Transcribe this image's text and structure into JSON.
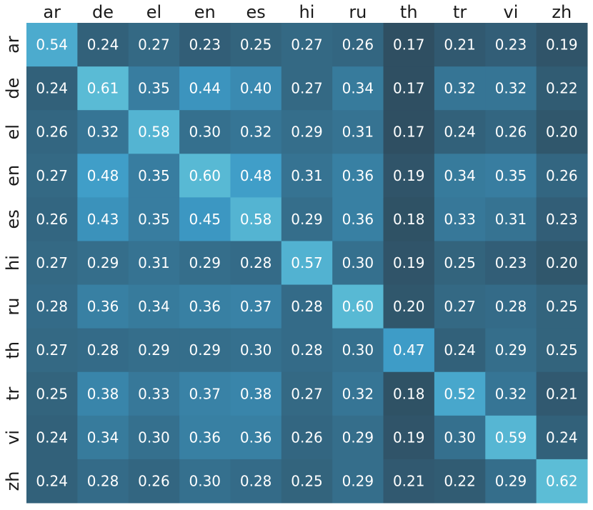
{
  "chart_data": {
    "type": "heatmap",
    "title": "",
    "xlabel": "",
    "ylabel": "",
    "x_categories": [
      "ar",
      "de",
      "el",
      "en",
      "es",
      "hi",
      "ru",
      "th",
      "tr",
      "vi",
      "zh"
    ],
    "y_categories": [
      "ar",
      "de",
      "el",
      "en",
      "es",
      "hi",
      "ru",
      "th",
      "tr",
      "vi",
      "zh"
    ],
    "x_axis_position": "top",
    "colorbar": false,
    "color_low": "#2f4f62",
    "color_mid": "#3d9ac6",
    "color_high": "#5cbdd6",
    "value_range": [
      0.17,
      0.62
    ],
    "values": [
      [
        "0.54",
        "0.24",
        "0.27",
        "0.23",
        "0.25",
        "0.27",
        "0.26",
        "0.17",
        "0.21",
        "0.23",
        "0.19"
      ],
      [
        "0.24",
        "0.61",
        "0.35",
        "0.44",
        "0.40",
        "0.27",
        "0.34",
        "0.17",
        "0.32",
        "0.32",
        "0.22"
      ],
      [
        "0.26",
        "0.32",
        "0.58",
        "0.30",
        "0.32",
        "0.29",
        "0.31",
        "0.17",
        "0.24",
        "0.26",
        "0.20"
      ],
      [
        "0.27",
        "0.48",
        "0.35",
        "0.60",
        "0.48",
        "0.31",
        "0.36",
        "0.19",
        "0.34",
        "0.35",
        "0.26"
      ],
      [
        "0.26",
        "0.43",
        "0.35",
        "0.45",
        "0.58",
        "0.29",
        "0.36",
        "0.18",
        "0.33",
        "0.31",
        "0.23"
      ],
      [
        "0.27",
        "0.29",
        "0.31",
        "0.29",
        "0.28",
        "0.57",
        "0.30",
        "0.19",
        "0.25",
        "0.23",
        "0.20"
      ],
      [
        "0.28",
        "0.36",
        "0.34",
        "0.36",
        "0.37",
        "0.28",
        "0.60",
        "0.20",
        "0.27",
        "0.28",
        "0.25"
      ],
      [
        "0.27",
        "0.28",
        "0.29",
        "0.29",
        "0.30",
        "0.28",
        "0.30",
        "0.47",
        "0.24",
        "0.29",
        "0.25"
      ],
      [
        "0.25",
        "0.38",
        "0.33",
        "0.37",
        "0.38",
        "0.27",
        "0.32",
        "0.18",
        "0.52",
        "0.32",
        "0.21"
      ],
      [
        "0.24",
        "0.34",
        "0.30",
        "0.36",
        "0.36",
        "0.26",
        "0.29",
        "0.19",
        "0.30",
        "0.59",
        "0.24"
      ],
      [
        "0.24",
        "0.28",
        "0.26",
        "0.30",
        "0.28",
        "0.25",
        "0.29",
        "0.21",
        "0.22",
        "0.29",
        "0.62"
      ]
    ]
  }
}
